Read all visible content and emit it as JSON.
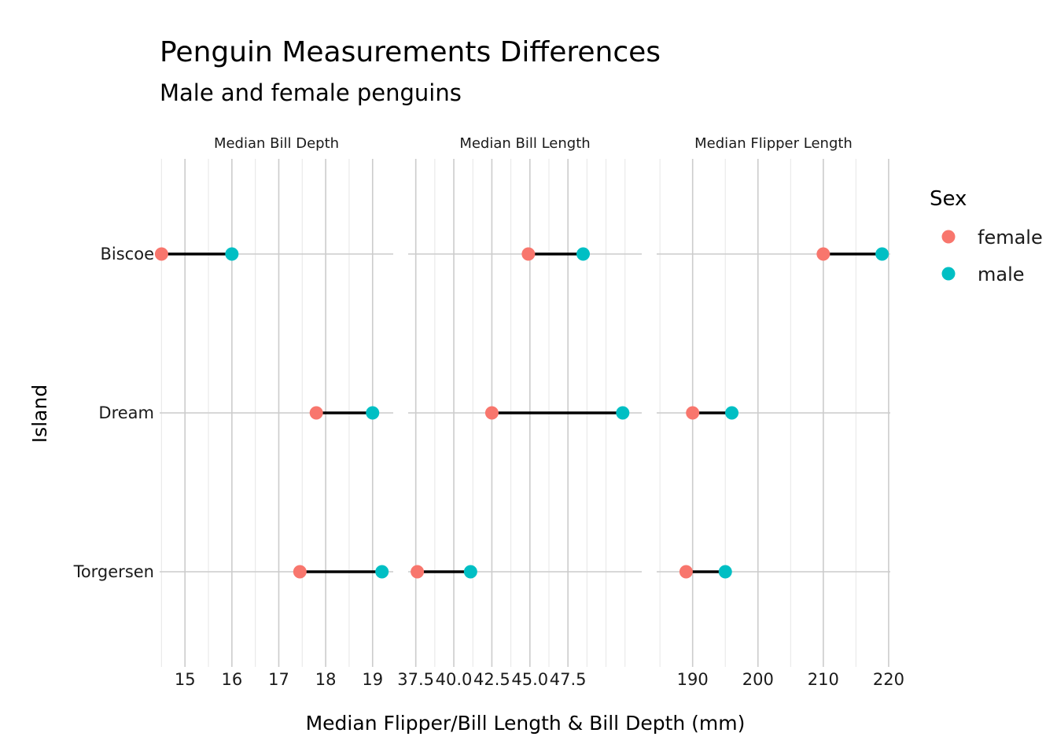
{
  "chart_data": {
    "type": "dumbbell",
    "title": "Penguin Measurements Differences",
    "subtitle": "Male and female penguins",
    "xlabel": "Median Flipper/Bill Length & Bill Depth (mm)",
    "ylabel": "Island",
    "categories": [
      "Biscoe",
      "Dream",
      "Torgersen"
    ],
    "legend": {
      "title": "Sex",
      "placement": "right",
      "entries": [
        {
          "name": "female",
          "color": "#F8766D"
        },
        {
          "name": "male",
          "color": "#00BFC4"
        }
      ]
    },
    "panels": [
      {
        "label": "Median Bill Depth",
        "xlim": [
          14.46,
          19.44
        ],
        "ticks": [
          15,
          16,
          17,
          18,
          19
        ],
        "tick_labels": [
          "15",
          "16",
          "17",
          "18",
          "19"
        ],
        "minor_ticks": [
          14.5,
          15.5,
          16.5,
          17.5,
          18.5
        ],
        "series": [
          {
            "name": "female",
            "values": [
              14.5,
              17.8,
              17.45
            ]
          },
          {
            "name": "male",
            "values": [
              16.0,
              19.0,
              19.2
            ]
          }
        ]
      },
      {
        "label": "Median Bill Length",
        "xlim": [
          37.0,
          52.35
        ],
        "ticks": [
          37.5,
          40.0,
          42.5,
          45.0,
          47.5
        ],
        "tick_labels": [
          "37.5",
          "40.0",
          "42.5",
          "45.0",
          "47.5"
        ],
        "minor_ticks": [
          38.75,
          41.25,
          43.75,
          46.25,
          48.75,
          50.0,
          51.25
        ],
        "series": [
          {
            "name": "female",
            "values": [
              44.9,
              42.5,
              37.6
            ]
          },
          {
            "name": "male",
            "values": [
              48.5,
              51.1,
              41.1
            ]
          }
        ]
      },
      {
        "label": "Median Flipper Length",
        "xlim": [
          184.5,
          220.25
        ],
        "ticks": [
          190,
          200,
          210,
          220
        ],
        "tick_labels": [
          "190",
          "200",
          "210",
          "220"
        ],
        "minor_ticks": [
          185,
          195,
          205,
          215
        ],
        "series": [
          {
            "name": "female",
            "values": [
              210,
              190,
              189
            ]
          },
          {
            "name": "male",
            "values": [
              219,
              196,
              195
            ]
          }
        ]
      }
    ],
    "grid": true
  }
}
